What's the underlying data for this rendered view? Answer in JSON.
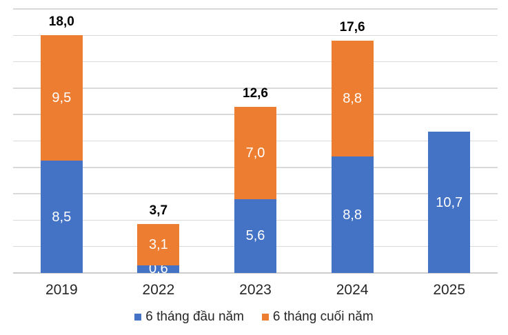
{
  "chart_data": {
    "type": "bar",
    "stacked": true,
    "title": "",
    "xlabel": "",
    "ylabel": "",
    "categories": [
      "2019",
      "2022",
      "2023",
      "2024",
      "2025"
    ],
    "series": [
      {
        "name": "6 tháng đầu năm",
        "color": "#4472C4",
        "values": [
          8.5,
          0.6,
          5.6,
          8.8,
          10.7
        ],
        "labels": [
          "8,5",
          "0,6",
          "5,6",
          "8,8",
          "10,7"
        ]
      },
      {
        "name": "6 tháng cuối năm",
        "color": "#ED7D31",
        "values": [
          9.5,
          3.1,
          7.0,
          8.8,
          0
        ],
        "labels": [
          "9,5",
          "3,1",
          "7,0",
          "8,8",
          "-"
        ]
      }
    ],
    "totals": [
      18.0,
      3.7,
      12.6,
      17.6,
      null
    ],
    "total_labels": [
      "18,0",
      "3,7",
      "12,6",
      "17,6",
      ""
    ],
    "ylim": [
      0,
      20
    ],
    "gridline_step": 2,
    "grid": true,
    "y_axis_labels_visible": false,
    "legend_position": "bottom",
    "colors": {
      "gridline": "#D9D9D9",
      "axis_line": "#CDCDCD",
      "data_label": "#FFFFFF",
      "total_label": "#000000",
      "axis_label": "#262626"
    }
  }
}
